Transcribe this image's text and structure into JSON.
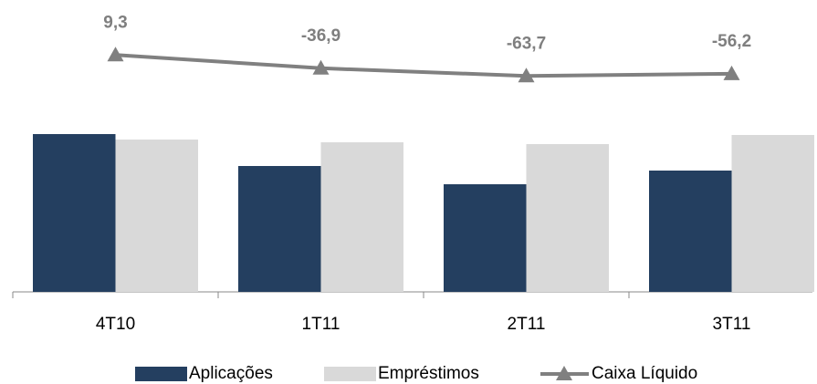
{
  "chart_data": {
    "type": "bar_line",
    "categories": [
      "4T10",
      "1T11",
      "2T11",
      "3T11"
    ],
    "series": [
      {
        "name": "Aplicações",
        "type": "bar",
        "color": "#243f60",
        "values": [
          173,
          138,
          118,
          133
        ]
      },
      {
        "name": "Empréstimos",
        "type": "bar",
        "color": "#d9d9d9",
        "values": [
          167,
          164,
          162,
          172
        ]
      },
      {
        "name": "Caixa Líquido",
        "type": "line",
        "axis": "y2",
        "color": "#808080",
        "values": [
          9.3,
          -36.9,
          -63.7,
          -56.2
        ],
        "value_labels": [
          "9,3",
          "-36,9",
          "-63,7",
          "-56,2"
        ]
      }
    ],
    "ylim": [
      0,
      300
    ],
    "y2lim": [
      -815,
      137
    ],
    "legend": "bottom"
  }
}
